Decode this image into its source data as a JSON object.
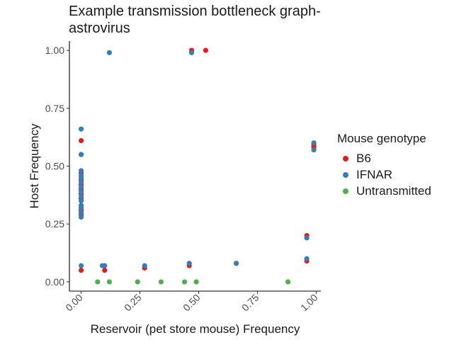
{
  "chart_data": {
    "type": "scatter",
    "title": "Example transmission bottleneck graph-astrovirus",
    "title_lines": [
      "Example transmission bottleneck graph-",
      "astrovirus"
    ],
    "xlabel": "Reservoir (pet store mouse) Frequency",
    "ylabel": "Host Frequency",
    "xlim": [
      -0.05,
      1.02
    ],
    "ylim": [
      -0.04,
      1.04
    ],
    "xticks": [
      0.0,
      0.25,
      0.5,
      0.75,
      1.0
    ],
    "xtick_labels": [
      "0.00",
      "0.25",
      "0.50",
      "0.75",
      "1.00"
    ],
    "yticks": [
      0.0,
      0.25,
      0.5,
      0.75,
      1.0
    ],
    "ytick_labels": [
      "0.00",
      "0.25",
      "0.50",
      "0.75",
      "1.00"
    ],
    "grid": false,
    "legend": {
      "title": "Mouse genotype",
      "position": "right"
    },
    "series": [
      {
        "name": "B6",
        "color": "#e41a1c",
        "points": [
          [
            0.0,
            0.61
          ],
          [
            0.0,
            0.55
          ],
          [
            0.0,
            0.47
          ],
          [
            0.0,
            0.44
          ],
          [
            0.0,
            0.42
          ],
          [
            0.0,
            0.4
          ],
          [
            0.0,
            0.38
          ],
          [
            0.0,
            0.36
          ],
          [
            0.0,
            0.33
          ],
          [
            0.0,
            0.31
          ],
          [
            0.0,
            0.3
          ],
          [
            0.0,
            0.29
          ],
          [
            0.0,
            0.05
          ],
          [
            0.1,
            0.05
          ],
          [
            0.27,
            0.06
          ],
          [
            0.46,
            0.07
          ],
          [
            0.66,
            0.08
          ],
          [
            0.96,
            0.2
          ],
          [
            0.96,
            0.09
          ],
          [
            0.99,
            0.6
          ],
          [
            0.99,
            0.59
          ],
          [
            0.99,
            0.58
          ],
          [
            0.53,
            1.0
          ],
          [
            0.47,
            1.0
          ]
        ]
      },
      {
        "name": "IFNAR",
        "color": "#377eb8",
        "points": [
          [
            0.0,
            0.66
          ],
          [
            0.0,
            0.55
          ],
          [
            0.0,
            0.48
          ],
          [
            0.0,
            0.46
          ],
          [
            0.0,
            0.45
          ],
          [
            0.0,
            0.43
          ],
          [
            0.0,
            0.41
          ],
          [
            0.0,
            0.39
          ],
          [
            0.0,
            0.37
          ],
          [
            0.0,
            0.35
          ],
          [
            0.0,
            0.33
          ],
          [
            0.0,
            0.32
          ],
          [
            0.0,
            0.3
          ],
          [
            0.0,
            0.28
          ],
          [
            0.0,
            0.07
          ],
          [
            0.09,
            0.07
          ],
          [
            0.1,
            0.07
          ],
          [
            0.27,
            0.07
          ],
          [
            0.46,
            0.08
          ],
          [
            0.66,
            0.08
          ],
          [
            0.96,
            0.19
          ],
          [
            0.96,
            0.1
          ],
          [
            0.99,
            0.57
          ],
          [
            0.99,
            0.6
          ],
          [
            0.12,
            0.99
          ],
          [
            0.47,
            0.99
          ]
        ]
      },
      {
        "name": "Untransmitted",
        "color": "#4daf4a",
        "points": [
          [
            0.07,
            0.0
          ],
          [
            0.12,
            0.0
          ],
          [
            0.24,
            0.0
          ],
          [
            0.34,
            0.0
          ],
          [
            0.44,
            0.0
          ],
          [
            0.49,
            0.0
          ],
          [
            0.88,
            0.0
          ]
        ]
      }
    ]
  }
}
